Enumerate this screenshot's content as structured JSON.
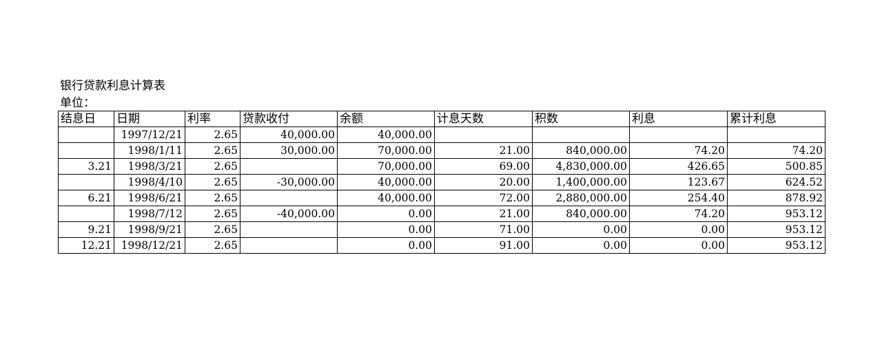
{
  "sheet": {
    "title": "银行贷款利息计算表",
    "unit_label": "单位："
  },
  "table": {
    "headers": [
      "结息日",
      "日期",
      "利率",
      "贷款收付",
      "余额",
      "计息天数",
      "积数",
      "利息",
      "累计利息"
    ],
    "rows": [
      [
        "",
        "1997/12/21",
        "2.65",
        "40,000.00",
        "40,000.00",
        "",
        "",
        "",
        ""
      ],
      [
        "",
        "1998/1/11",
        "2.65",
        "30,000.00",
        "70,000.00",
        "21.00",
        "840,000.00",
        "74.20",
        "74.20"
      ],
      [
        "3.21",
        "1998/3/21",
        "2.65",
        "",
        "70,000.00",
        "69.00",
        "4,830,000.00",
        "426.65",
        "500.85"
      ],
      [
        "",
        "1998/4/10",
        "2.65",
        "-30,000.00",
        "40,000.00",
        "20.00",
        "1,400,000.00",
        "123.67",
        "624.52"
      ],
      [
        "6.21",
        "1998/6/21",
        "2.65",
        "",
        "40,000.00",
        "72.00",
        "2,880,000.00",
        "254.40",
        "878.92"
      ],
      [
        "",
        "1998/7/12",
        "2.65",
        "-40,000.00",
        "0.00",
        "21.00",
        "840,000.00",
        "74.20",
        "953.12"
      ],
      [
        "9.21",
        "1998/9/21",
        "2.65",
        "",
        "0.00",
        "71.00",
        "0.00",
        "0.00",
        "953.12"
      ],
      [
        "12.21",
        "1998/12/21",
        "2.65",
        "",
        "0.00",
        "91.00",
        "0.00",
        "0.00",
        "953.12"
      ]
    ]
  }
}
